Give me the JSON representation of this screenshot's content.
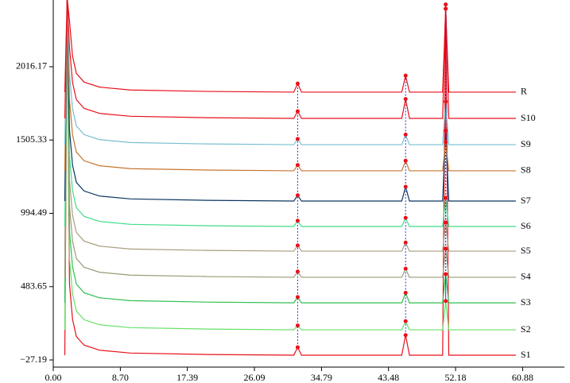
{
  "chart_data": {
    "type": "line",
    "x": [
      1.5,
      1.8,
      2.1,
      2.5,
      3.0,
      4.0,
      6.0,
      10.0,
      20.0,
      31.2,
      31.7,
      32.2,
      45.2,
      45.7,
      46.2,
      50.5,
      50.9,
      51.3,
      60.0
    ],
    "xlim": [
      0,
      66.3
    ],
    "ylim": [
      -77,
      2481
    ],
    "xticks": [
      {
        "value": 0,
        "label": "0.00"
      },
      {
        "value": 8.7,
        "label": "8.70"
      },
      {
        "value": 17.39,
        "label": "17.39"
      },
      {
        "value": 26.09,
        "label": "26.09"
      },
      {
        "value": 34.79,
        "label": "34.79"
      },
      {
        "value": 43.48,
        "label": "43.48"
      },
      {
        "value": 52.18,
        "label": "52.18"
      },
      {
        "value": 60.88,
        "label": "60.88"
      }
    ],
    "yticks": [
      {
        "value": -27.19,
        "label": "−27.19"
      },
      483.65,
      994.49,
      1505.33,
      2016.17
    ],
    "series": [
      {
        "name": "S1",
        "color": "#e8101a",
        "values": [
          6,
          2500,
          506,
          256,
          136,
          76,
          41,
          21,
          11,
          6,
          61,
          6,
          6,
          146,
          6,
          6,
          2420,
          6,
          6
        ]
      },
      {
        "name": "S2",
        "color": "#66e066",
        "values": [
          183,
          2500,
          683,
          433,
          313,
          253,
          218,
          198,
          188,
          183,
          213,
          183,
          183,
          243,
          183,
          183,
          383,
          183,
          183
        ]
      },
      {
        "name": "S3",
        "color": "#2fbf4f",
        "values": [
          371,
          2500,
          871,
          621,
          501,
          441,
          406,
          386,
          376,
          371,
          411,
          371,
          371,
          441,
          371,
          371,
          571,
          371,
          371
        ]
      },
      {
        "name": "S4",
        "color": "#9a9a78",
        "values": [
          549,
          2500,
          1049,
          799,
          679,
          619,
          584,
          564,
          554,
          549,
          589,
          549,
          549,
          609,
          549,
          549,
          749,
          549,
          549
        ]
      },
      {
        "name": "S5",
        "color": "#a89c7c",
        "values": [
          731,
          2500,
          1231,
          981,
          861,
          801,
          766,
          746,
          736,
          731,
          771,
          731,
          731,
          791,
          731,
          731,
          931,
          731,
          731
        ]
      },
      {
        "name": "S6",
        "color": "#40dc88",
        "values": [
          903,
          2500,
          1403,
          1153,
          1033,
          973,
          938,
          918,
          908,
          903,
          943,
          903,
          903,
          963,
          903,
          903,
          1103,
          903,
          903
        ]
      },
      {
        "name": "S7",
        "color": "#0a3560",
        "values": [
          1080,
          2500,
          1580,
          1330,
          1210,
          1150,
          1115,
          1095,
          1085,
          1080,
          1120,
          1080,
          1080,
          1180,
          1080,
          1080,
          1570,
          1080,
          1080
        ]
      },
      {
        "name": "S8",
        "color": "#c8742e",
        "values": [
          1291,
          2500,
          1791,
          1541,
          1421,
          1361,
          1326,
          1306,
          1296,
          1291,
          1331,
          1291,
          1291,
          1361,
          1291,
          1291,
          1491,
          1291,
          1291
        ]
      },
      {
        "name": "S9",
        "color": "#78bfcf",
        "values": [
          1473,
          2500,
          1973,
          1723,
          1603,
          1543,
          1508,
          1488,
          1478,
          1473,
          1513,
          1473,
          1473,
          1543,
          1473,
          1473,
          1773,
          1473,
          1473
        ]
      },
      {
        "name": "S10",
        "color": "#e8101a",
        "values": [
          1656,
          2500,
          2156,
          1906,
          1786,
          1726,
          1691,
          1671,
          1661,
          1656,
          1706,
          1656,
          1656,
          1791,
          1656,
          1656,
          2450,
          1656,
          1656
        ]
      },
      {
        "name": "R",
        "color": "#e8101a",
        "values": [
          1839,
          2500,
          2339,
          2089,
          1969,
          1909,
          1874,
          1854,
          1844,
          1839,
          1899,
          1839,
          1839,
          1954,
          1839,
          1839,
          2420,
          1839,
          1839
        ]
      }
    ]
  }
}
